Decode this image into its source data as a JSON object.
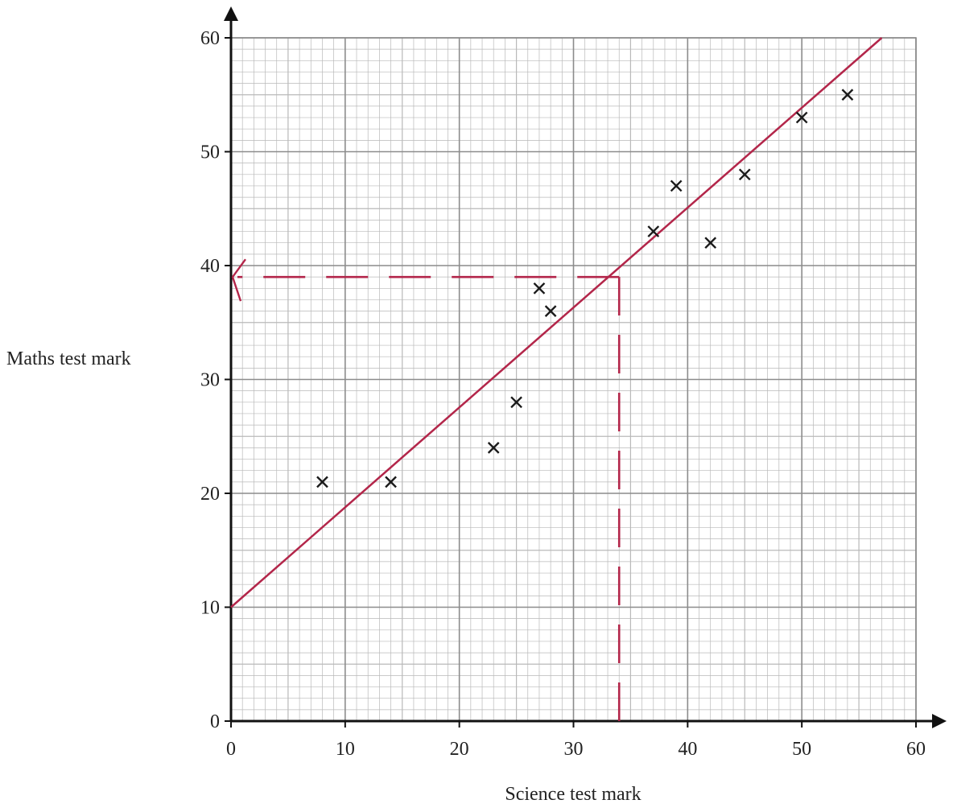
{
  "chart_data": {
    "type": "scatter",
    "xlabel": "Science test mark",
    "ylabel": "Maths test mark",
    "xlim": [
      0,
      60
    ],
    "ylim": [
      0,
      60
    ],
    "xticks": [
      "0",
      "10",
      "20",
      "30",
      "40",
      "50",
      "60"
    ],
    "yticks": [
      "0",
      "10",
      "20",
      "30",
      "40",
      "50",
      "60"
    ],
    "grid": true,
    "points": [
      {
        "x": 8,
        "y": 21
      },
      {
        "x": 14,
        "y": 21
      },
      {
        "x": 23,
        "y": 24
      },
      {
        "x": 25,
        "y": 28
      },
      {
        "x": 27,
        "y": 38
      },
      {
        "x": 28,
        "y": 36
      },
      {
        "x": 37,
        "y": 43
      },
      {
        "x": 39,
        "y": 47
      },
      {
        "x": 42,
        "y": 42
      },
      {
        "x": 45,
        "y": 48
      },
      {
        "x": 50,
        "y": 53
      },
      {
        "x": 54,
        "y": 55
      }
    ],
    "line_of_best_fit": {
      "from": {
        "x": 0,
        "y": 10
      },
      "to": {
        "x": 57,
        "y": 60
      }
    },
    "reading": {
      "x": 34,
      "y": 39
    }
  },
  "colors": {
    "grid_minor": "#b9b9b9",
    "grid_major": "#8c8c8c",
    "axes": "#111111",
    "points": "#1a1a1a",
    "annotation": "#b3264a"
  }
}
